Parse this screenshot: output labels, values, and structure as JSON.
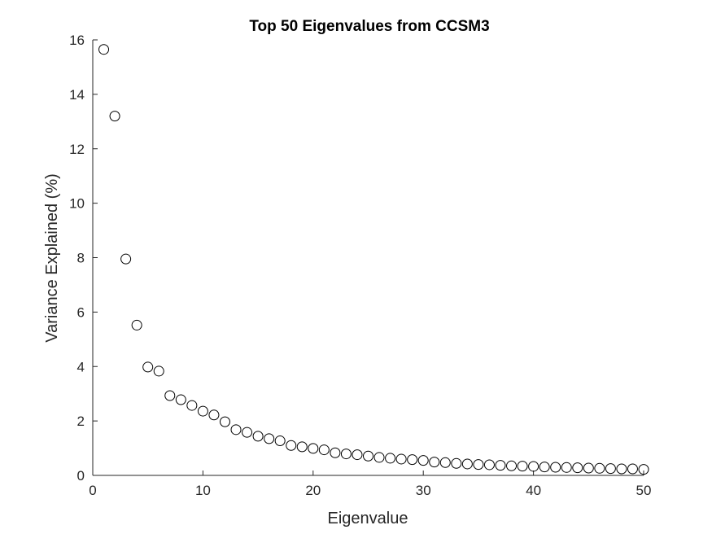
{
  "chart_data": {
    "type": "scatter",
    "title": "Top 50 Eigenvalues from CCSM3",
    "xlabel": "Eigenvalue",
    "ylabel": "Variance Explained (%)",
    "xlim": [
      0,
      50
    ],
    "ylim": [
      0,
      16
    ],
    "xticks": [
      0,
      10,
      20,
      30,
      40,
      50
    ],
    "yticks": [
      0,
      2,
      4,
      6,
      8,
      10,
      12,
      14,
      16
    ],
    "grid": false,
    "marker": "open-circle",
    "marker_color": "#000000",
    "x": [
      1,
      2,
      3,
      4,
      5,
      6,
      7,
      8,
      9,
      10,
      11,
      12,
      13,
      14,
      15,
      16,
      17,
      18,
      19,
      20,
      21,
      22,
      23,
      24,
      25,
      26,
      27,
      28,
      29,
      30,
      31,
      32,
      33,
      34,
      35,
      36,
      37,
      38,
      39,
      40,
      41,
      42,
      43,
      44,
      45,
      46,
      47,
      48,
      49,
      50
    ],
    "y": [
      15.65,
      13.2,
      7.95,
      5.52,
      3.98,
      3.83,
      2.93,
      2.78,
      2.57,
      2.36,
      2.22,
      1.97,
      1.68,
      1.58,
      1.44,
      1.35,
      1.27,
      1.1,
      1.05,
      0.99,
      0.94,
      0.83,
      0.79,
      0.76,
      0.71,
      0.66,
      0.63,
      0.6,
      0.58,
      0.55,
      0.49,
      0.47,
      0.44,
      0.42,
      0.4,
      0.39,
      0.37,
      0.35,
      0.34,
      0.33,
      0.31,
      0.3,
      0.29,
      0.28,
      0.27,
      0.26,
      0.25,
      0.24,
      0.24,
      0.22
    ]
  }
}
